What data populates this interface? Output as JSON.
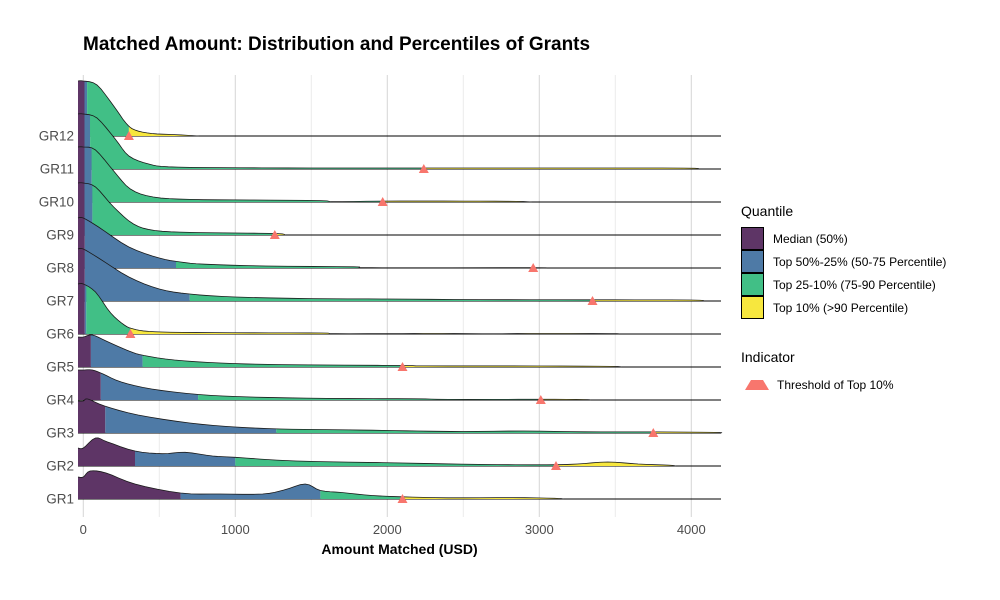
{
  "chart_data": {
    "type": "ridgeline-density",
    "title": "Matched Amount: Distribution and Percentiles of Grants",
    "xlabel": "Amount Matched (USD)",
    "x_ticks": [
      0,
      1000,
      2000,
      3000,
      4000
    ],
    "x_minor_ticks": [
      500,
      1500,
      2500,
      3500
    ],
    "xlim": [
      0,
      4200
    ],
    "grid": "vertical",
    "quantile_colors": {
      "median": "#5e3566",
      "p50_75": "#4e7aa6",
      "p75_90": "#41bf86",
      "p90_plus": "#f7e73e"
    },
    "outline_color": "#1a1a1a",
    "threshold_marker_color": "#f8766d",
    "groups": [
      {
        "name": "GR12",
        "q50": 8,
        "q75": 25,
        "q90": 300,
        "threshold": 300,
        "density": [
          [
            0,
            55
          ],
          [
            90,
            51
          ],
          [
            200,
            30
          ],
          [
            280,
            13
          ],
          [
            340,
            6
          ],
          [
            450,
            2.5
          ],
          [
            600,
            1.4
          ],
          [
            760,
            0
          ]
        ]
      },
      {
        "name": "GR11",
        "q50": 8,
        "q75": 45,
        "q90": 2240,
        "threshold": 2240,
        "density": [
          [
            0,
            55
          ],
          [
            90,
            51
          ],
          [
            210,
            30
          ],
          [
            300,
            13
          ],
          [
            430,
            5
          ],
          [
            560,
            2.2
          ],
          [
            900,
            1.4
          ],
          [
            1500,
            1
          ],
          [
            2240,
            1
          ],
          [
            3200,
            1
          ],
          [
            3950,
            0.9
          ],
          [
            4050,
            0
          ]
        ]
      },
      {
        "name": "GR10",
        "q50": 8,
        "q75": 55,
        "q90": 1970,
        "threshold": 1970,
        "density": [
          [
            0,
            55
          ],
          [
            80,
            52
          ],
          [
            200,
            31
          ],
          [
            310,
            13
          ],
          [
            460,
            5
          ],
          [
            700,
            2.6
          ],
          [
            1100,
            2
          ],
          [
            1560,
            1.4
          ],
          [
            1650,
            0.3
          ],
          [
            1960,
            0.9
          ],
          [
            2500,
            0.9
          ],
          [
            2850,
            0.6
          ],
          [
            2950,
            0
          ]
        ]
      },
      {
        "name": "GR9",
        "q50": 8,
        "q75": 60,
        "q90": 1260,
        "threshold": 1260,
        "density": [
          [
            0,
            52
          ],
          [
            80,
            48
          ],
          [
            200,
            28
          ],
          [
            330,
            11
          ],
          [
            470,
            4.5
          ],
          [
            700,
            2.6
          ],
          [
            1000,
            2
          ],
          [
            1280,
            1.4
          ],
          [
            1330,
            0
          ]
        ]
      },
      {
        "name": "GR8",
        "q50": 10,
        "q75": 610,
        "q90": 2960,
        "threshold": 2960,
        "density": [
          [
            0,
            50
          ],
          [
            100,
            41
          ],
          [
            300,
            21
          ],
          [
            500,
            10
          ],
          [
            640,
            6
          ],
          [
            800,
            3.8
          ],
          [
            1200,
            2
          ],
          [
            1780,
            1.2
          ],
          [
            1900,
            0.3
          ],
          [
            2960,
            0.3
          ],
          [
            3010,
            0
          ]
        ]
      },
      {
        "name": "GR7",
        "q50": 10,
        "q75": 700,
        "q90": 3350,
        "threshold": 3350,
        "density": [
          [
            0,
            52
          ],
          [
            100,
            43
          ],
          [
            300,
            24
          ],
          [
            500,
            12
          ],
          [
            700,
            7
          ],
          [
            1000,
            4
          ],
          [
            1500,
            2.4
          ],
          [
            2000,
            2
          ],
          [
            2600,
            1.4
          ],
          [
            3300,
            1.2
          ],
          [
            3990,
            1
          ],
          [
            4080,
            0
          ]
        ]
      },
      {
        "name": "GR6",
        "q50": 10,
        "q75": 20,
        "q90": 310,
        "threshold": 310,
        "density": [
          [
            0,
            50
          ],
          [
            80,
            42
          ],
          [
            180,
            21
          ],
          [
            270,
            9
          ],
          [
            330,
            5
          ],
          [
            430,
            2.6
          ],
          [
            650,
            1.6
          ],
          [
            1100,
            1.2
          ],
          [
            1570,
            1
          ],
          [
            1660,
            0.3
          ],
          [
            2100,
            0.4
          ],
          [
            2360,
            0.5
          ],
          [
            2700,
            0.2
          ],
          [
            2930,
            0.5
          ],
          [
            3460,
            0.4
          ],
          [
            3520,
            0
          ]
        ]
      },
      {
        "name": "GR5",
        "q50": 50,
        "q75": 390,
        "q90": 2100,
        "threshold": 2100,
        "density": [
          [
            0,
            30
          ],
          [
            60,
            32
          ],
          [
            150,
            26
          ],
          [
            300,
            16
          ],
          [
            400,
            11.5
          ],
          [
            600,
            7
          ],
          [
            900,
            4
          ],
          [
            1300,
            2.4
          ],
          [
            2100,
            1.5
          ],
          [
            2250,
            1.1
          ],
          [
            3000,
            1
          ],
          [
            3470,
            0.6
          ],
          [
            3540,
            0
          ]
        ]
      },
      {
        "name": "GR4",
        "q50": 115,
        "q75": 755,
        "q90": 3010,
        "threshold": 3010,
        "density": [
          [
            0,
            30
          ],
          [
            60,
            30
          ],
          [
            130,
            26
          ],
          [
            250,
            18
          ],
          [
            450,
            11
          ],
          [
            760,
            5.5
          ],
          [
            1100,
            3
          ],
          [
            1600,
            1.6
          ],
          [
            2180,
            1.2
          ],
          [
            2400,
            0.6
          ],
          [
            3000,
            0.7
          ],
          [
            3290,
            0.5
          ],
          [
            3340,
            0
          ]
        ]
      },
      {
        "name": "GR3",
        "q50": 145,
        "q75": 1270,
        "q90": 3750,
        "threshold": 3750,
        "density": [
          [
            0,
            32
          ],
          [
            30,
            34
          ],
          [
            140,
            27
          ],
          [
            360,
            18
          ],
          [
            700,
            10
          ],
          [
            1000,
            6
          ],
          [
            1300,
            4
          ],
          [
            1600,
            3.4
          ],
          [
            1900,
            2.8
          ],
          [
            2200,
            2
          ],
          [
            2500,
            1.5
          ],
          [
            2900,
            2
          ],
          [
            3300,
            1.2
          ],
          [
            3760,
            1.1
          ],
          [
            4150,
            0.6
          ],
          [
            4200,
            0
          ]
        ]
      },
      {
        "name": "GR2",
        "q50": 340,
        "q75": 1000,
        "q90": 3110,
        "threshold": 3110,
        "density": [
          [
            0,
            18
          ],
          [
            80,
            28
          ],
          [
            160,
            24
          ],
          [
            340,
            15
          ],
          [
            520,
            12.3
          ],
          [
            670,
            13.7
          ],
          [
            850,
            10
          ],
          [
            1000,
            8.7
          ],
          [
            1400,
            5
          ],
          [
            2100,
            3
          ],
          [
            2600,
            1.6
          ],
          [
            3050,
            1.2
          ],
          [
            3250,
            2
          ],
          [
            3450,
            4
          ],
          [
            3650,
            2
          ],
          [
            3850,
            0.8
          ],
          [
            3900,
            0
          ]
        ]
      },
      {
        "name": "GR1",
        "q50": 640,
        "q75": 1560,
        "q90": 2100,
        "threshold": 2100,
        "density": [
          [
            0,
            22
          ],
          [
            45,
            28
          ],
          [
            150,
            26
          ],
          [
            340,
            15
          ],
          [
            640,
            6
          ],
          [
            900,
            5
          ],
          [
            1180,
            5
          ],
          [
            1320,
            9
          ],
          [
            1460,
            15
          ],
          [
            1560,
            8.5
          ],
          [
            1700,
            6.5
          ],
          [
            1900,
            3.5
          ],
          [
            2100,
            2.2
          ],
          [
            2400,
            1.2
          ],
          [
            2820,
            1.4
          ],
          [
            3100,
            0.7
          ],
          [
            3160,
            0
          ]
        ]
      }
    ]
  },
  "legend": {
    "quantile_title": "Quantile",
    "items": [
      {
        "label": "Median (50%)",
        "color": "#5e3566"
      },
      {
        "label": "Top 50%-25% (50-75 Percentile)",
        "color": "#4e7aa6"
      },
      {
        "label": "Top 25-10% (75-90 Percentile)",
        "color": "#41bf86"
      },
      {
        "label": "Top 10% (>90 Percentile)",
        "color": "#f7e73e"
      }
    ],
    "indicator_title": "Indicator",
    "indicator_label": "Threshold of Top 10%",
    "indicator_color": "#f8766d"
  }
}
